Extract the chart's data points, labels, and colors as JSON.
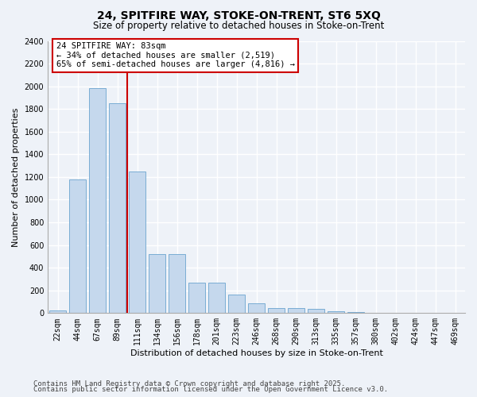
{
  "title": "24, SPITFIRE WAY, STOKE-ON-TRENT, ST6 5XQ",
  "subtitle": "Size of property relative to detached houses in Stoke-on-Trent",
  "xlabel": "Distribution of detached houses by size in Stoke-on-Trent",
  "ylabel": "Number of detached properties",
  "bar_color": "#c5d8ed",
  "bar_edge_color": "#7aadd4",
  "categories": [
    "22sqm",
    "44sqm",
    "67sqm",
    "89sqm",
    "111sqm",
    "134sqm",
    "156sqm",
    "178sqm",
    "201sqm",
    "223sqm",
    "246sqm",
    "268sqm",
    "290sqm",
    "313sqm",
    "335sqm",
    "357sqm",
    "380sqm",
    "402sqm",
    "424sqm",
    "447sqm",
    "469sqm"
  ],
  "values": [
    25,
    1175,
    1980,
    1850,
    1250,
    520,
    520,
    270,
    270,
    160,
    85,
    45,
    45,
    35,
    15,
    10,
    5,
    5,
    5,
    3,
    5
  ],
  "ylim": [
    0,
    2400
  ],
  "yticks": [
    0,
    200,
    400,
    600,
    800,
    1000,
    1200,
    1400,
    1600,
    1800,
    2000,
    2200,
    2400
  ],
  "annotation_line1": "24 SPITFIRE WAY: 83sqm",
  "annotation_line2": "← 34% of detached houses are smaller (2,519)",
  "annotation_line3": "65% of semi-detached houses are larger (4,816) →",
  "annotation_border_color": "#cc0000",
  "vline_color": "#cc0000",
  "vline_x_idx": 3,
  "footer1": "Contains HM Land Registry data © Crown copyright and database right 2025.",
  "footer2": "Contains public sector information licensed under the Open Government Licence v3.0.",
  "bg_color": "#eef2f8",
  "grid_color": "#ffffff",
  "title_fontsize": 10,
  "subtitle_fontsize": 8.5,
  "ylabel_fontsize": 8,
  "xlabel_fontsize": 8,
  "tick_fontsize": 7,
  "footer_fontsize": 6.5,
  "annotation_fontsize": 7.5
}
